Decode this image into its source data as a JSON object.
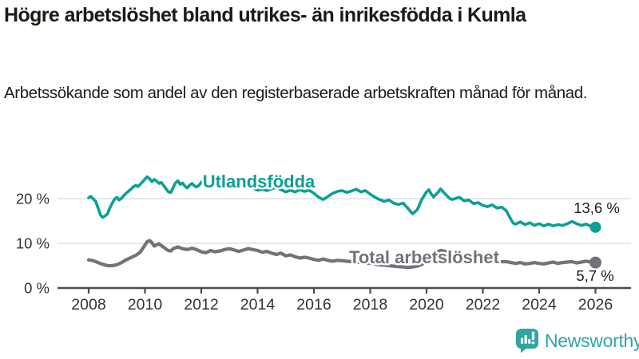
{
  "page": {
    "title": "Högre arbetslöshet bland utrikes- än inrikesfödda i Kumla",
    "subtitle": "Arbetssökande som andel av den registerbaserade arbetskraften månad för månad."
  },
  "chart_data": {
    "type": "line",
    "title": "Högre arbetslöshet bland utrikes- än inrikesfödda i Kumla",
    "subtitle": "Arbetssökande som andel av den registerbaserade arbetskraften månad för månad.",
    "xlabel": "",
    "ylabel": "",
    "x_axis": {
      "range": [
        2007.9,
        2027.2
      ],
      "ticks": [
        2008,
        2010,
        2012,
        2014,
        2016,
        2018,
        2020,
        2022,
        2024,
        2026
      ],
      "tick_labels": [
        "2008",
        "2010",
        "2012",
        "2014",
        "2016",
        "2018",
        "2020",
        "2022",
        "2024",
        "2026"
      ]
    },
    "y_axis": {
      "range": [
        0,
        28
      ],
      "ticks": [
        0,
        10,
        20
      ],
      "tick_labels": [
        "0 %",
        "10 %",
        "20 %"
      ],
      "grid": true
    },
    "legend": "inline-labels",
    "series": [
      {
        "key": "utlandsfodda",
        "name": "Utlandsfödda",
        "color": "#0ba093",
        "end_value": 13.6,
        "end_label": "13,6 %",
        "points": [
          [
            2008.0,
            20.2
          ],
          [
            2008.08,
            20.5
          ],
          [
            2008.17,
            19.9
          ],
          [
            2008.25,
            19.4
          ],
          [
            2008.33,
            18.0
          ],
          [
            2008.42,
            16.3
          ],
          [
            2008.5,
            15.8
          ],
          [
            2008.58,
            16.1
          ],
          [
            2008.67,
            16.6
          ],
          [
            2008.75,
            17.9
          ],
          [
            2008.83,
            18.9
          ],
          [
            2008.92,
            19.9
          ],
          [
            2009.0,
            20.3
          ],
          [
            2009.08,
            19.7
          ],
          [
            2009.17,
            20.1
          ],
          [
            2009.25,
            20.7
          ],
          [
            2009.33,
            21.2
          ],
          [
            2009.42,
            21.7
          ],
          [
            2009.5,
            22.1
          ],
          [
            2009.58,
            22.6
          ],
          [
            2009.67,
            23.0
          ],
          [
            2009.75,
            22.7
          ],
          [
            2009.83,
            23.2
          ],
          [
            2009.92,
            23.8
          ],
          [
            2010.0,
            24.4
          ],
          [
            2010.08,
            24.9
          ],
          [
            2010.17,
            24.4
          ],
          [
            2010.25,
            23.8
          ],
          [
            2010.33,
            24.3
          ],
          [
            2010.42,
            23.9
          ],
          [
            2010.5,
            23.4
          ],
          [
            2010.58,
            23.6
          ],
          [
            2010.67,
            22.9
          ],
          [
            2010.75,
            22.2
          ],
          [
            2010.83,
            21.5
          ],
          [
            2010.92,
            21.4
          ],
          [
            2011.0,
            22.5
          ],
          [
            2011.08,
            23.5
          ],
          [
            2011.17,
            24.0
          ],
          [
            2011.25,
            23.2
          ],
          [
            2011.33,
            23.5
          ],
          [
            2011.42,
            22.8
          ],
          [
            2011.5,
            22.4
          ],
          [
            2011.58,
            23.0
          ],
          [
            2011.67,
            23.4
          ],
          [
            2011.75,
            22.9
          ],
          [
            2011.83,
            22.6
          ],
          [
            2011.92,
            23.0
          ],
          [
            2012.0,
            23.7
          ],
          [
            2012.08,
            23.9
          ],
          [
            2012.17,
            23.3
          ],
          [
            2012.25,
            23.0
          ],
          [
            2012.33,
            23.3
          ],
          [
            2012.42,
            22.8
          ],
          [
            2012.5,
            23.2
          ],
          [
            2012.58,
            23.5
          ],
          [
            2012.67,
            22.9
          ],
          [
            2012.75,
            23.1
          ],
          [
            2012.83,
            22.7
          ],
          [
            2012.92,
            23.0
          ],
          [
            2013.0,
            23.3
          ],
          [
            2013.17,
            22.8
          ],
          [
            2013.33,
            23.1
          ],
          [
            2013.5,
            22.6
          ],
          [
            2013.67,
            22.9
          ],
          [
            2013.83,
            22.4
          ],
          [
            2014.0,
            21.9
          ],
          [
            2014.17,
            22.1
          ],
          [
            2014.33,
            21.8
          ],
          [
            2014.5,
            22.2
          ],
          [
            2014.67,
            22.5
          ],
          [
            2014.83,
            22.0
          ],
          [
            2015.0,
            21.5
          ],
          [
            2015.17,
            21.9
          ],
          [
            2015.33,
            21.5
          ],
          [
            2015.5,
            22.0
          ],
          [
            2015.67,
            21.6
          ],
          [
            2015.83,
            21.9
          ],
          [
            2016.0,
            21.2
          ],
          [
            2016.17,
            20.3
          ],
          [
            2016.33,
            19.8
          ],
          [
            2016.5,
            20.5
          ],
          [
            2016.67,
            21.2
          ],
          [
            2016.83,
            21.6
          ],
          [
            2017.0,
            21.8
          ],
          [
            2017.17,
            21.4
          ],
          [
            2017.33,
            21.7
          ],
          [
            2017.5,
            22.1
          ],
          [
            2017.67,
            21.5
          ],
          [
            2017.83,
            21.8
          ],
          [
            2018.0,
            21.0
          ],
          [
            2018.17,
            20.3
          ],
          [
            2018.33,
            19.8
          ],
          [
            2018.5,
            19.4
          ],
          [
            2018.67,
            19.7
          ],
          [
            2018.83,
            19.0
          ],
          [
            2019.0,
            18.7
          ],
          [
            2019.17,
            19.0
          ],
          [
            2019.33,
            17.9
          ],
          [
            2019.5,
            16.6
          ],
          [
            2019.67,
            17.5
          ],
          [
            2019.83,
            19.8
          ],
          [
            2020.0,
            21.5
          ],
          [
            2020.08,
            22.0
          ],
          [
            2020.17,
            21.0
          ],
          [
            2020.25,
            20.4
          ],
          [
            2020.33,
            20.9
          ],
          [
            2020.42,
            21.5
          ],
          [
            2020.5,
            22.2
          ],
          [
            2020.58,
            21.6
          ],
          [
            2020.67,
            21.0
          ],
          [
            2020.75,
            20.5
          ],
          [
            2020.83,
            20.0
          ],
          [
            2020.92,
            19.8
          ],
          [
            2021.0,
            20.0
          ],
          [
            2021.17,
            20.3
          ],
          [
            2021.33,
            19.5
          ],
          [
            2021.5,
            19.7
          ],
          [
            2021.67,
            18.9
          ],
          [
            2021.83,
            19.1
          ],
          [
            2022.0,
            18.5
          ],
          [
            2022.17,
            18.2
          ],
          [
            2022.33,
            18.6
          ],
          [
            2022.5,
            17.9
          ],
          [
            2022.67,
            18.1
          ],
          [
            2022.83,
            17.3
          ],
          [
            2023.0,
            15.3
          ],
          [
            2023.08,
            14.5
          ],
          [
            2023.17,
            14.3
          ],
          [
            2023.33,
            14.8
          ],
          [
            2023.5,
            14.2
          ],
          [
            2023.67,
            14.6
          ],
          [
            2023.83,
            14.0
          ],
          [
            2024.0,
            14.4
          ],
          [
            2024.17,
            13.9
          ],
          [
            2024.33,
            14.3
          ],
          [
            2024.5,
            13.9
          ],
          [
            2024.67,
            14.2
          ],
          [
            2024.83,
            14.0
          ],
          [
            2025.0,
            14.4
          ],
          [
            2025.17,
            14.9
          ],
          [
            2025.33,
            14.4
          ],
          [
            2025.5,
            14.0
          ],
          [
            2025.67,
            14.3
          ],
          [
            2025.83,
            13.8
          ],
          [
            2026.0,
            13.6
          ]
        ]
      },
      {
        "key": "total",
        "name": "Total arbetslöshet",
        "color": "#72727a",
        "end_value": 5.7,
        "end_label": "5,7 %",
        "points": [
          [
            2008.0,
            6.3
          ],
          [
            2008.17,
            6.1
          ],
          [
            2008.33,
            5.7
          ],
          [
            2008.5,
            5.3
          ],
          [
            2008.67,
            5.0
          ],
          [
            2008.83,
            5.0
          ],
          [
            2009.0,
            5.2
          ],
          [
            2009.17,
            5.7
          ],
          [
            2009.33,
            6.3
          ],
          [
            2009.5,
            6.8
          ],
          [
            2009.67,
            7.3
          ],
          [
            2009.83,
            8.0
          ],
          [
            2010.0,
            9.6
          ],
          [
            2010.08,
            10.4
          ],
          [
            2010.17,
            10.6
          ],
          [
            2010.25,
            10.1
          ],
          [
            2010.33,
            9.4
          ],
          [
            2010.42,
            9.7
          ],
          [
            2010.5,
            9.9
          ],
          [
            2010.58,
            9.5
          ],
          [
            2010.67,
            9.1
          ],
          [
            2010.75,
            8.7
          ],
          [
            2010.83,
            8.4
          ],
          [
            2010.92,
            8.3
          ],
          [
            2011.0,
            8.8
          ],
          [
            2011.17,
            9.2
          ],
          [
            2011.33,
            8.8
          ],
          [
            2011.5,
            8.6
          ],
          [
            2011.67,
            8.9
          ],
          [
            2011.83,
            8.6
          ],
          [
            2012.0,
            8.1
          ],
          [
            2012.17,
            7.9
          ],
          [
            2012.33,
            8.4
          ],
          [
            2012.5,
            8.1
          ],
          [
            2012.67,
            8.3
          ],
          [
            2012.83,
            8.6
          ],
          [
            2013.0,
            8.8
          ],
          [
            2013.17,
            8.5
          ],
          [
            2013.33,
            8.2
          ],
          [
            2013.5,
            8.5
          ],
          [
            2013.67,
            8.8
          ],
          [
            2013.83,
            8.6
          ],
          [
            2014.0,
            8.4
          ],
          [
            2014.17,
            8.0
          ],
          [
            2014.33,
            8.2
          ],
          [
            2014.5,
            7.8
          ],
          [
            2014.67,
            7.5
          ],
          [
            2014.83,
            7.8
          ],
          [
            2015.0,
            7.2
          ],
          [
            2015.17,
            7.4
          ],
          [
            2015.33,
            7.0
          ],
          [
            2015.5,
            6.7
          ],
          [
            2015.67,
            6.9
          ],
          [
            2015.83,
            6.7
          ],
          [
            2016.0,
            6.4
          ],
          [
            2016.17,
            6.2
          ],
          [
            2016.33,
            6.5
          ],
          [
            2016.5,
            6.2
          ],
          [
            2016.67,
            6.0
          ],
          [
            2016.83,
            6.2
          ],
          [
            2017.0,
            6.1
          ],
          [
            2017.17,
            6.0
          ],
          [
            2017.33,
            5.9
          ],
          [
            2017.5,
            5.8
          ],
          [
            2017.67,
            5.7
          ],
          [
            2017.83,
            5.6
          ],
          [
            2018.0,
            5.5
          ],
          [
            2018.17,
            5.4
          ],
          [
            2018.33,
            5.2
          ],
          [
            2018.5,
            5.1
          ],
          [
            2018.67,
            5.0
          ],
          [
            2018.83,
            4.9
          ],
          [
            2019.0,
            4.8
          ],
          [
            2019.17,
            4.7
          ],
          [
            2019.33,
            4.6
          ],
          [
            2019.5,
            4.7
          ],
          [
            2019.67,
            4.9
          ],
          [
            2019.83,
            5.3
          ],
          [
            2020.0,
            5.8
          ],
          [
            2020.17,
            7.0
          ],
          [
            2020.33,
            8.0
          ],
          [
            2020.5,
            8.4
          ],
          [
            2020.67,
            8.2
          ],
          [
            2020.83,
            7.9
          ],
          [
            2021.0,
            7.6
          ],
          [
            2021.17,
            7.3
          ],
          [
            2021.33,
            7.1
          ],
          [
            2021.5,
            6.8
          ],
          [
            2021.67,
            6.6
          ],
          [
            2021.83,
            6.3
          ],
          [
            2022.0,
            6.1
          ],
          [
            2022.17,
            6.0
          ],
          [
            2022.33,
            5.9
          ],
          [
            2022.5,
            5.8
          ],
          [
            2022.67,
            5.9
          ],
          [
            2022.83,
            5.9
          ],
          [
            2023.0,
            5.7
          ],
          [
            2023.17,
            5.5
          ],
          [
            2023.33,
            5.7
          ],
          [
            2023.5,
            5.4
          ],
          [
            2023.67,
            5.5
          ],
          [
            2023.83,
            5.7
          ],
          [
            2024.0,
            5.5
          ],
          [
            2024.17,
            5.4
          ],
          [
            2024.33,
            5.6
          ],
          [
            2024.5,
            5.8
          ],
          [
            2024.67,
            5.5
          ],
          [
            2024.83,
            5.7
          ],
          [
            2025.0,
            5.8
          ],
          [
            2025.17,
            5.9
          ],
          [
            2025.33,
            5.6
          ],
          [
            2025.5,
            5.8
          ],
          [
            2025.67,
            6.0
          ],
          [
            2025.83,
            5.8
          ],
          [
            2026.0,
            5.7
          ]
        ]
      }
    ],
    "colors": {
      "grid": "#e0e0e0",
      "axis": "#4a4a4a",
      "tick_label": "#333333",
      "value_label": "#1a1a1a"
    }
  },
  "footer": {
    "brand": "Newsworthy",
    "brand_color": "#2fa5a2",
    "logo_icon": "bar-chart-speech-bubble-icon"
  }
}
